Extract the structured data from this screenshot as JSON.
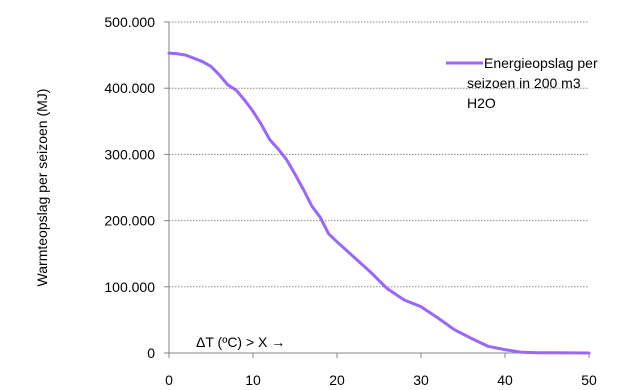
{
  "chart_data": {
    "type": "line",
    "title": "",
    "xlabel": "",
    "ylabel": "Warmteopslag per seizoen (MJ)",
    "xlim": [
      0,
      50
    ],
    "ylim": [
      0,
      500000
    ],
    "x_ticks": [
      0,
      10,
      20,
      30,
      40,
      50
    ],
    "x_tick_labels": [
      "0",
      "10",
      "20",
      "30",
      "40",
      "50"
    ],
    "y_ticks": [
      0,
      100000,
      200000,
      300000,
      400000,
      500000
    ],
    "y_tick_labels": [
      "0",
      "100.000",
      "200.000",
      "300.000",
      "400.000",
      "500.000"
    ],
    "grid": "horizontal dotted",
    "legend_position": "right",
    "annotation": "ΔT (ºC) > X →",
    "series": [
      {
        "name": "Energieopslag per seizoen in 200 m3 H2O",
        "legend_lines": [
          "Energieopslag per",
          "seizoen in 200 m3",
          "H2O"
        ],
        "color": "#9966ff",
        "x": [
          0,
          1,
          2,
          3,
          4,
          5,
          6,
          7,
          8,
          9,
          10,
          11,
          12,
          13,
          14,
          15,
          16,
          17,
          18,
          19,
          20,
          22,
          24,
          26,
          28,
          30,
          32,
          34,
          36,
          38,
          40,
          42,
          44,
          46,
          48,
          50
        ],
        "y": [
          453000,
          452000,
          450000,
          445000,
          440000,
          433000,
          420000,
          405000,
          397000,
          382000,
          365000,
          345000,
          322000,
          308000,
          292000,
          270000,
          247000,
          222000,
          205000,
          180000,
          168000,
          145000,
          122000,
          97000,
          80000,
          70000,
          53000,
          35000,
          22000,
          10000,
          5000,
          1000,
          500,
          300,
          200,
          0
        ]
      }
    ]
  }
}
